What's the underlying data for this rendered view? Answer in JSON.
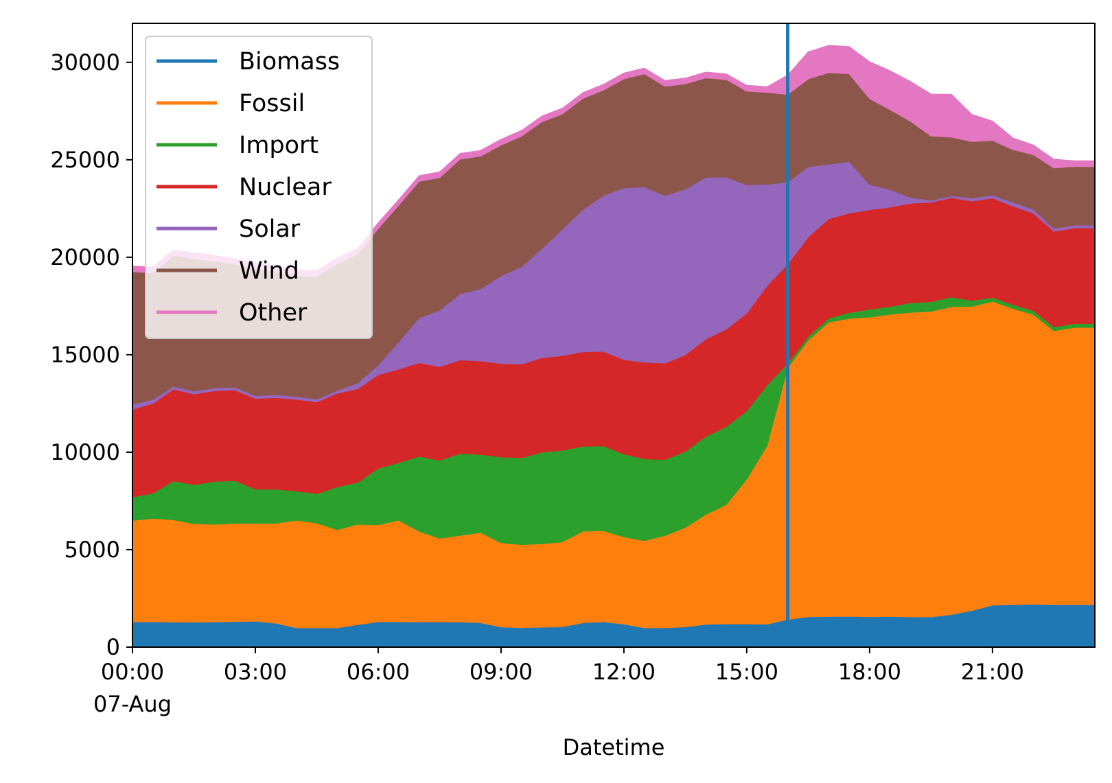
{
  "chart_data": {
    "type": "area",
    "stacked": true,
    "xlabel": "Datetime",
    "ylabel": "",
    "title": "",
    "x_ticks": [
      "00:00",
      "03:00",
      "06:00",
      "09:00",
      "12:00",
      "15:00",
      "18:00",
      "21:00"
    ],
    "x_date_label": "07-Aug",
    "y_ticks": [
      "0",
      "5000",
      "10000",
      "15000",
      "20000",
      "25000",
      "30000"
    ],
    "x_step_minutes": 30,
    "ylim": [
      0,
      32000
    ],
    "legend_placement": "upper-left",
    "grid": false,
    "vertical_line": {
      "at": "16:00",
      "color": "#1f77b4"
    },
    "series": [
      {
        "name": "Biomass",
        "color": "#1f77b4",
        "values": [
          1300,
          1300,
          1280,
          1280,
          1290,
          1310,
          1330,
          1230,
          990,
          990,
          990,
          1150,
          1300,
          1300,
          1290,
          1290,
          1290,
          1250,
          1030,
          1000,
          1020,
          1040,
          1250,
          1300,
          1180,
          990,
          990,
          1040,
          1170,
          1190,
          1190,
          1180,
          1420,
          1560,
          1570,
          1580,
          1560,
          1570,
          1550,
          1550,
          1670,
          1880,
          2150,
          2180,
          2200,
          2180,
          2180,
          2180
        ]
      },
      {
        "name": "Fossil",
        "color": "#ff7f0e",
        "values": [
          5200,
          5300,
          5250,
          5050,
          5010,
          5030,
          5020,
          5120,
          5520,
          5380,
          5030,
          5150,
          4970,
          5210,
          4650,
          4290,
          4440,
          4630,
          4320,
          4260,
          4280,
          4360,
          4700,
          4670,
          4470,
          4470,
          4730,
          5100,
          5630,
          6120,
          7430,
          9170,
          12930,
          14180,
          15100,
          15280,
          15370,
          15500,
          15620,
          15670,
          15790,
          15600,
          15590,
          15190,
          14860,
          14050,
          14220,
          14220
        ]
      },
      {
        "name": "Import",
        "color": "#2ca02c",
        "values": [
          1200,
          1300,
          2000,
          2000,
          2200,
          2200,
          1750,
          1750,
          1500,
          1500,
          2200,
          2150,
          2900,
          2950,
          3850,
          4000,
          4200,
          4000,
          4400,
          4450,
          4700,
          4700,
          4350,
          4350,
          4250,
          4200,
          3900,
          3900,
          4000,
          4000,
          3500,
          3100,
          200,
          200,
          200,
          300,
          400,
          400,
          500,
          500,
          500,
          300,
          200,
          200,
          200,
          200,
          200,
          200
        ]
      },
      {
        "name": "Nuclear",
        "color": "#d62728",
        "values": [
          4500,
          4600,
          4700,
          4650,
          4650,
          4650,
          4650,
          4700,
          4700,
          4700,
          4800,
          4800,
          4800,
          4800,
          4800,
          4800,
          4800,
          4800,
          4800,
          4800,
          4850,
          4850,
          4850,
          4850,
          4850,
          4950,
          4950,
          4950,
          5000,
          5000,
          5000,
          5100,
          5100,
          5100,
          5100,
          5100,
          5100,
          5100,
          5100,
          5100,
          5100,
          5100,
          5100,
          5050,
          5000,
          4900,
          4900,
          4900
        ]
      },
      {
        "name": "Solar",
        "color": "#9467bd",
        "values": [
          250,
          200,
          150,
          150,
          150,
          150,
          150,
          150,
          150,
          150,
          150,
          300,
          500,
          1400,
          2300,
          2900,
          3400,
          3700,
          4500,
          5000,
          5600,
          6500,
          7300,
          8000,
          8800,
          9000,
          8600,
          8500,
          8300,
          7800,
          6600,
          5200,
          4200,
          3600,
          2800,
          2650,
          1300,
          900,
          300,
          100,
          100,
          150,
          150,
          200,
          200,
          150,
          150,
          150
        ]
      },
      {
        "name": "Wind",
        "color": "#8c564b",
        "values": [
          6800,
          6500,
          6700,
          6800,
          6500,
          6300,
          6500,
          6300,
          6200,
          6300,
          6500,
          6600,
          7000,
          7000,
          7000,
          6800,
          6900,
          6800,
          6700,
          6700,
          6500,
          5900,
          5700,
          5400,
          5600,
          5800,
          5600,
          5400,
          5100,
          5000,
          4800,
          4700,
          4500,
          4500,
          4700,
          4500,
          4400,
          4100,
          3900,
          3300,
          3000,
          2900,
          2800,
          2700,
          2800,
          3100,
          3000,
          3000
        ]
      },
      {
        "name": "Other",
        "color": "#e377c2",
        "values": [
          300,
          300,
          300,
          300,
          300,
          300,
          300,
          300,
          300,
          300,
          300,
          300,
          300,
          300,
          300,
          300,
          300,
          300,
          300,
          300,
          300,
          300,
          300,
          300,
          300,
          300,
          300,
          300,
          300,
          300,
          300,
          300,
          1000,
          1400,
          1400,
          1400,
          1900,
          2000,
          2050,
          2150,
          2200,
          1400,
          1000,
          600,
          500,
          450,
          300,
          300
        ]
      }
    ]
  }
}
